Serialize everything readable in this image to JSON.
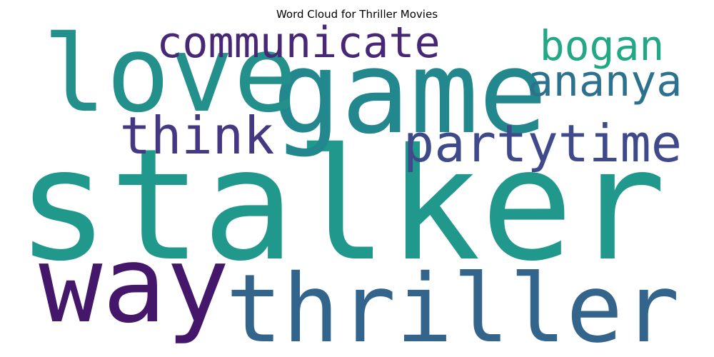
{
  "chart_data": {
    "type": "wordcloud",
    "title": "Word Cloud for Thriller Movies",
    "words": [
      {
        "text": "stalker",
        "weight": 1.0,
        "color": "#21988c"
      },
      {
        "text": "game",
        "weight": 0.72,
        "color": "#23888e"
      },
      {
        "text": "love",
        "weight": 0.66,
        "color": "#23908c"
      },
      {
        "text": "way",
        "weight": 0.66,
        "color": "#45176b"
      },
      {
        "text": "thriller",
        "weight": 0.6,
        "color": "#33658c"
      },
      {
        "text": "partytime",
        "weight": 0.38,
        "color": "#3f4a8a"
      },
      {
        "text": "think",
        "weight": 0.38,
        "color": "#453781"
      },
      {
        "text": "ananya",
        "weight": 0.34,
        "color": "#2c718e"
      },
      {
        "text": "communicate",
        "weight": 0.34,
        "color": "#472776"
      },
      {
        "text": "bogan",
        "weight": 0.32,
        "color": "#22a884"
      }
    ]
  }
}
